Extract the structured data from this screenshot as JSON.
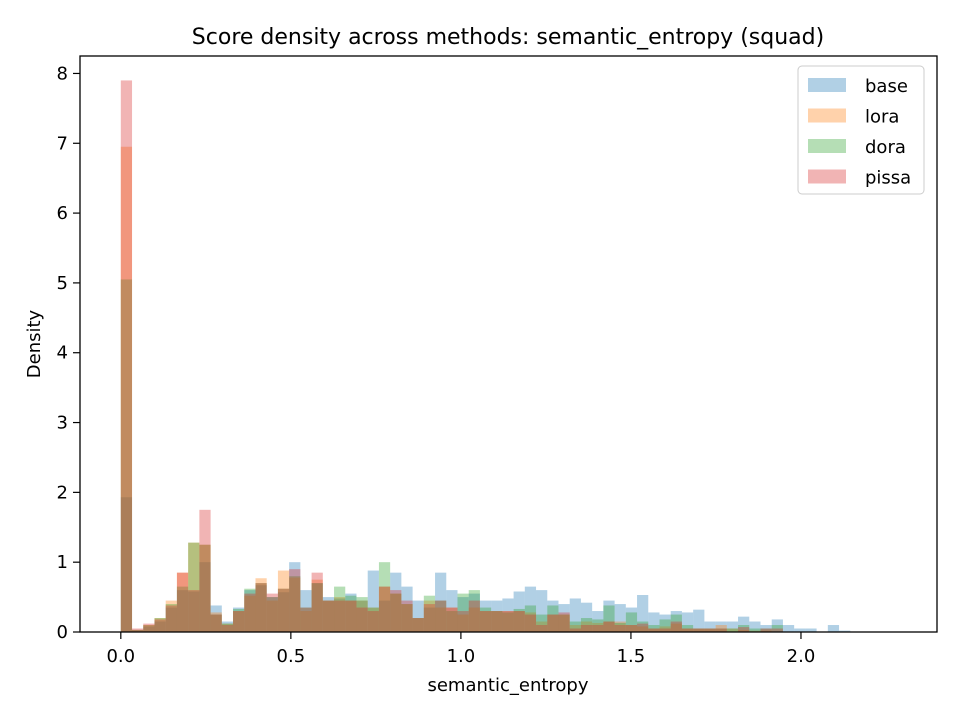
{
  "chart_data": {
    "type": "bar",
    "title": "Score density across methods: semantic_entropy (squad)",
    "xlabel": "semantic_entropy",
    "ylabel": "Density",
    "xlim": [
      -0.12,
      2.4
    ],
    "ylim": [
      0,
      8.25
    ],
    "x_ticks": [
      "0.0",
      "0.5",
      "1.0",
      "1.5",
      "2.0"
    ],
    "y_ticks": [
      "0",
      "1",
      "2",
      "3",
      "4",
      "5",
      "6",
      "7",
      "8"
    ],
    "bin_start": 0.0,
    "bin_width": 0.033,
    "legend_position": "top-right",
    "grid": false,
    "series": [
      {
        "name": "base",
        "color": "#1f77b4",
        "opacity": 0.35,
        "values": [
          1.93,
          0.03,
          0.08,
          0.15,
          0.35,
          0.6,
          0.58,
          1.0,
          0.38,
          0.15,
          0.35,
          0.6,
          0.67,
          0.5,
          0.57,
          1.0,
          0.6,
          0.7,
          0.5,
          0.48,
          0.55,
          0.45,
          0.88,
          0.45,
          0.85,
          0.65,
          0.45,
          0.35,
          0.85,
          0.6,
          0.5,
          0.55,
          0.45,
          0.45,
          0.48,
          0.58,
          0.65,
          0.6,
          0.45,
          0.4,
          0.48,
          0.42,
          0.3,
          0.45,
          0.4,
          0.35,
          0.53,
          0.28,
          0.25,
          0.3,
          0.28,
          0.32,
          0.15,
          0.15,
          0.15,
          0.22,
          0.15,
          0.1,
          0.18,
          0.1,
          0.05,
          0.05,
          0.0,
          0.1,
          0.02
        ]
      },
      {
        "name": "lora",
        "color": "#ff7f0e",
        "opacity": 0.35,
        "values": [
          6.95,
          0.03,
          0.1,
          0.2,
          0.45,
          0.85,
          1.28,
          1.25,
          0.28,
          0.12,
          0.3,
          0.52,
          0.77,
          0.45,
          0.88,
          0.78,
          0.3,
          0.75,
          0.45,
          0.5,
          0.45,
          0.45,
          0.35,
          0.65,
          0.55,
          0.4,
          0.2,
          0.45,
          0.35,
          0.35,
          0.25,
          0.35,
          0.3,
          0.3,
          0.3,
          0.3,
          0.28,
          0.15,
          0.25,
          0.25,
          0.1,
          0.15,
          0.13,
          0.15,
          0.15,
          0.1,
          0.08,
          0.05,
          0.08,
          0.12,
          0.05,
          0.05,
          0.05,
          0.1,
          0.05,
          0.03,
          0.02,
          0.02,
          0.0,
          0.0,
          0.0,
          0.0,
          0.0,
          0.0,
          0.0
        ]
      },
      {
        "name": "dora",
        "color": "#2ca02c",
        "opacity": 0.35,
        "values": [
          5.05,
          0.03,
          0.1,
          0.2,
          0.4,
          0.65,
          1.28,
          1.25,
          0.25,
          0.12,
          0.33,
          0.62,
          0.7,
          0.5,
          0.62,
          0.8,
          0.35,
          0.7,
          0.45,
          0.65,
          0.52,
          0.5,
          0.35,
          1.0,
          0.55,
          0.4,
          0.2,
          0.52,
          0.45,
          0.3,
          0.55,
          0.6,
          0.35,
          0.3,
          0.28,
          0.33,
          0.38,
          0.25,
          0.38,
          0.25,
          0.15,
          0.2,
          0.18,
          0.38,
          0.13,
          0.28,
          0.15,
          0.1,
          0.18,
          0.25,
          0.1,
          0.05,
          0.05,
          0.05,
          0.05,
          0.1,
          0.05,
          0.05,
          0.1,
          0.0,
          0.0,
          0.0,
          0.0,
          0.0,
          0.0
        ]
      },
      {
        "name": "pissa",
        "color": "#d62728",
        "opacity": 0.35,
        "values": [
          7.9,
          0.05,
          0.12,
          0.18,
          0.38,
          0.85,
          0.6,
          1.75,
          0.25,
          0.1,
          0.3,
          0.55,
          0.7,
          0.55,
          0.62,
          0.9,
          0.35,
          0.85,
          0.45,
          0.45,
          0.45,
          0.35,
          0.3,
          0.65,
          0.6,
          0.45,
          0.2,
          0.4,
          0.45,
          0.35,
          0.3,
          0.45,
          0.3,
          0.3,
          0.3,
          0.3,
          0.25,
          0.1,
          0.25,
          0.28,
          0.05,
          0.1,
          0.1,
          0.15,
          0.1,
          0.1,
          0.12,
          0.05,
          0.05,
          0.15,
          0.05,
          0.05,
          0.05,
          0.05,
          0.0,
          0.07,
          0.0,
          0.05,
          0.05,
          0.0,
          0.0,
          0.0,
          0.0,
          0.0,
          0.0
        ]
      }
    ]
  }
}
